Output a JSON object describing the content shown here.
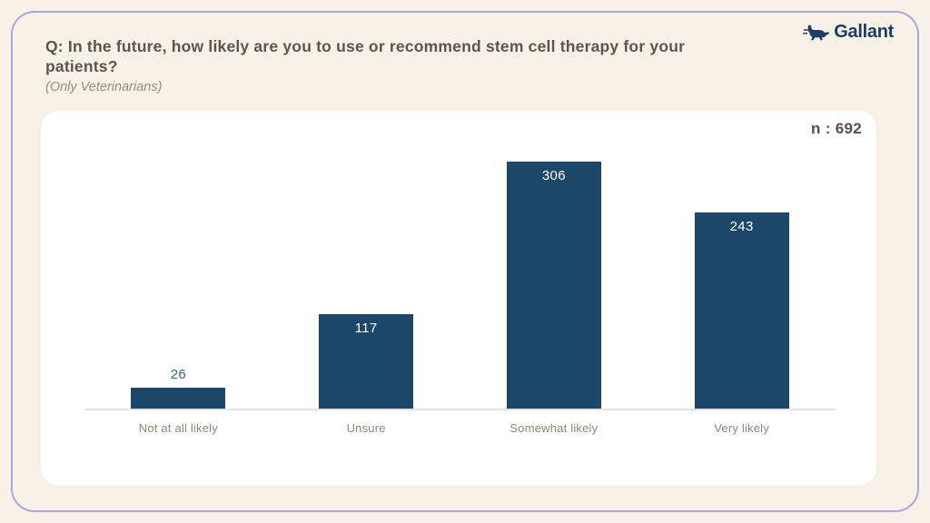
{
  "page": {
    "background_color": "#f8f1e8",
    "frame_border_color": "#aba6d3"
  },
  "header": {
    "title": "Q: In the future, how likely are you to use or recommend stem cell therapy for your patients?",
    "subtitle": "(Only Veterinarians)",
    "logo": {
      "brand": "Gallant",
      "icon": "running-dog-icon",
      "color": "#1e3d64"
    }
  },
  "chart_data": {
    "type": "bar",
    "title": "Q: In the future, how likely are you to use or recommend stem cell therapy for your patients?",
    "subtitle": "(Only Veterinarians)",
    "sample_size_label": "n : 692",
    "categories": [
      "Not at all likely",
      "Unsure",
      "Somewhat likely",
      "Very likely"
    ],
    "values": [
      26,
      117,
      306,
      243
    ],
    "xlabel": "",
    "ylabel": "",
    "ylim": [
      0,
      330
    ],
    "grid": false,
    "legend": false,
    "bar_color": "#1d4768",
    "value_label_color_inside": "#ffffff",
    "value_label_color_outside": "#3d6484",
    "axis_line_color": "#e3e3e3",
    "category_label_color": "#8c8781"
  }
}
